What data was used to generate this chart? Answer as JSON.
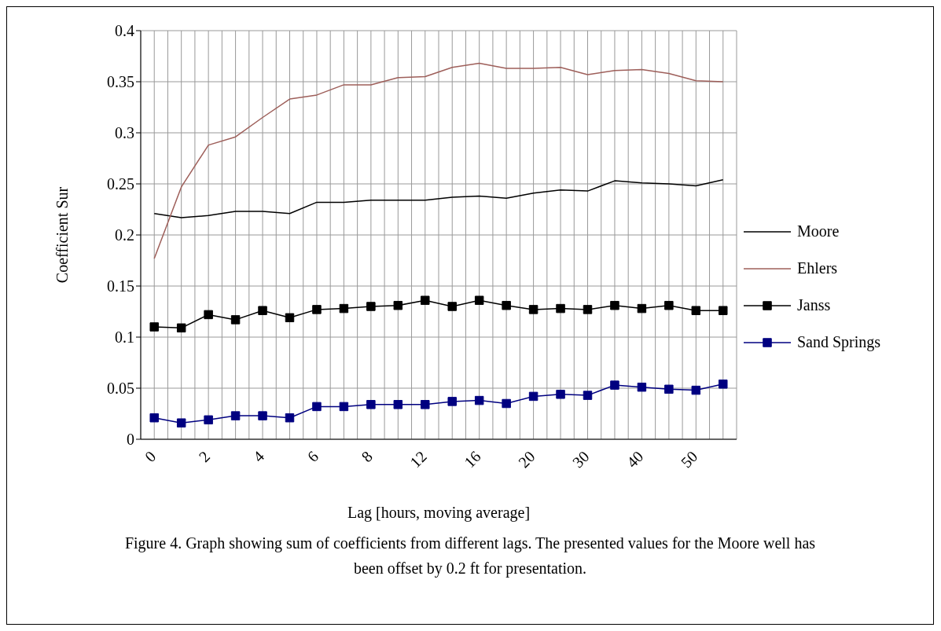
{
  "chart_data": {
    "type": "line",
    "xlabel": "Lag [hours, moving average]",
    "ylabel": "Coefficient Sur",
    "categories": [
      "0",
      null,
      "2",
      null,
      "4",
      null,
      "6",
      null,
      "8",
      null,
      "12",
      null,
      "16",
      null,
      "20",
      null,
      "30",
      null,
      "40",
      null,
      "50",
      null
    ],
    "series": [
      {
        "name": "Moore",
        "color": "#000000",
        "marker": "none",
        "values": [
          0.221,
          0.217,
          0.219,
          0.223,
          0.223,
          0.221,
          0.232,
          0.232,
          0.234,
          0.234,
          0.234,
          0.237,
          0.238,
          0.236,
          0.241,
          0.244,
          0.243,
          0.253,
          0.251,
          0.25,
          0.248,
          0.254
        ]
      },
      {
        "name": "Ehlers",
        "color": "#9e5f5a",
        "marker": "none",
        "values": [
          0.177,
          0.247,
          0.288,
          0.296,
          0.315,
          0.333,
          0.337,
          0.347,
          0.347,
          0.354,
          0.355,
          0.364,
          0.368,
          0.363,
          0.363,
          0.364,
          0.357,
          0.361,
          0.362,
          0.358,
          0.351,
          0.35
        ]
      },
      {
        "name": "Janss",
        "color": "#000000",
        "marker": "square",
        "values": [
          0.11,
          0.109,
          0.122,
          0.117,
          0.126,
          0.119,
          0.127,
          0.128,
          0.13,
          0.131,
          0.136,
          0.13,
          0.136,
          0.131,
          0.127,
          0.128,
          0.127,
          0.131,
          0.128,
          0.131,
          0.126,
          0.126
        ]
      },
      {
        "name": "Sand Springs",
        "color": "#000080",
        "marker": "square",
        "values": [
          0.021,
          0.016,
          0.019,
          0.023,
          0.023,
          0.021,
          0.032,
          0.032,
          0.034,
          0.034,
          0.034,
          0.037,
          0.038,
          0.035,
          0.042,
          0.044,
          0.043,
          0.053,
          0.051,
          0.049,
          0.048,
          0.054
        ]
      }
    ],
    "ylim": [
      0,
      0.4
    ],
    "yticks": [
      0,
      0.05,
      0.1,
      0.15,
      0.2,
      0.25,
      0.3,
      0.35,
      0.4
    ],
    "grid": true,
    "legend": "right",
    "annotations": [
      "Figure 4. Graph showing sum of coefficients from different lags. The presented values for the Moore well has been offset by 0.2 ft for presentation."
    ]
  }
}
